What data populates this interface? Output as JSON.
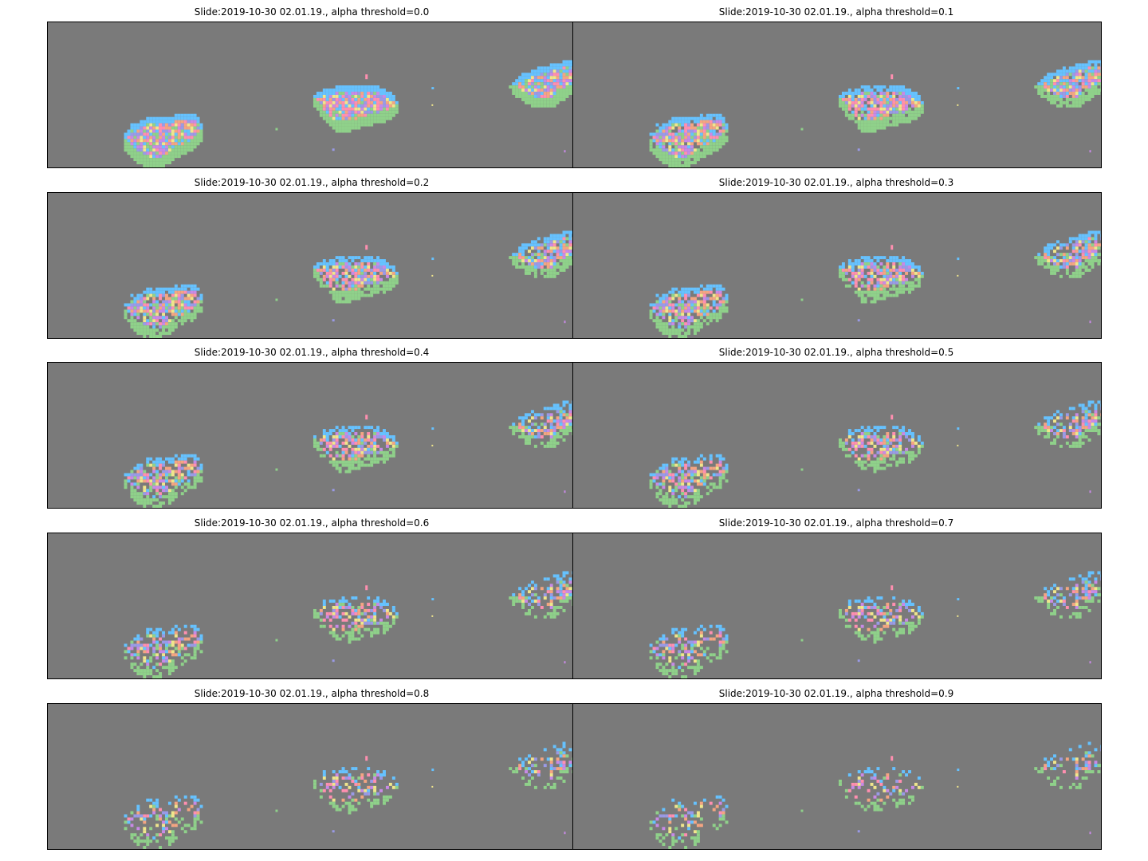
{
  "chart_data": [
    {
      "type": "heatmap",
      "title": "Slide:2019-10-30 02.01.19., alpha threshold=0.0",
      "alpha_threshold": 0.0
    },
    {
      "type": "heatmap",
      "title": "Slide:2019-10-30 02.01.19., alpha threshold=0.1",
      "alpha_threshold": 0.1
    },
    {
      "type": "heatmap",
      "title": "Slide:2019-10-30 02.01.19., alpha threshold=0.2",
      "alpha_threshold": 0.2
    },
    {
      "type": "heatmap",
      "title": "Slide:2019-10-30 02.01.19., alpha threshold=0.3",
      "alpha_threshold": 0.3
    },
    {
      "type": "heatmap",
      "title": "Slide:2019-10-30 02.01.19., alpha threshold=0.4",
      "alpha_threshold": 0.4
    },
    {
      "type": "heatmap",
      "title": "Slide:2019-10-30 02.01.19., alpha threshold=0.5",
      "alpha_threshold": 0.5
    },
    {
      "type": "heatmap",
      "title": "Slide:2019-10-30 02.01.19., alpha threshold=0.6",
      "alpha_threshold": 0.6
    },
    {
      "type": "heatmap",
      "title": "Slide:2019-10-30 02.01.19., alpha threshold=0.7",
      "alpha_threshold": 0.7
    },
    {
      "type": "heatmap",
      "title": "Slide:2019-10-30 02.01.19., alpha threshold=0.8",
      "alpha_threshold": 0.8
    },
    {
      "type": "heatmap",
      "title": "Slide:2019-10-30 02.01.19., alpha threshold=0.9",
      "alpha_threshold": 0.9
    }
  ],
  "colors": {
    "background": "#7a7a7a",
    "tile_palette": [
      "#66c2ff",
      "#c88ae6",
      "#f0e68c",
      "#f4a582",
      "#8fd18a",
      "#ff8fb0",
      "#9a9ae6"
    ]
  }
}
